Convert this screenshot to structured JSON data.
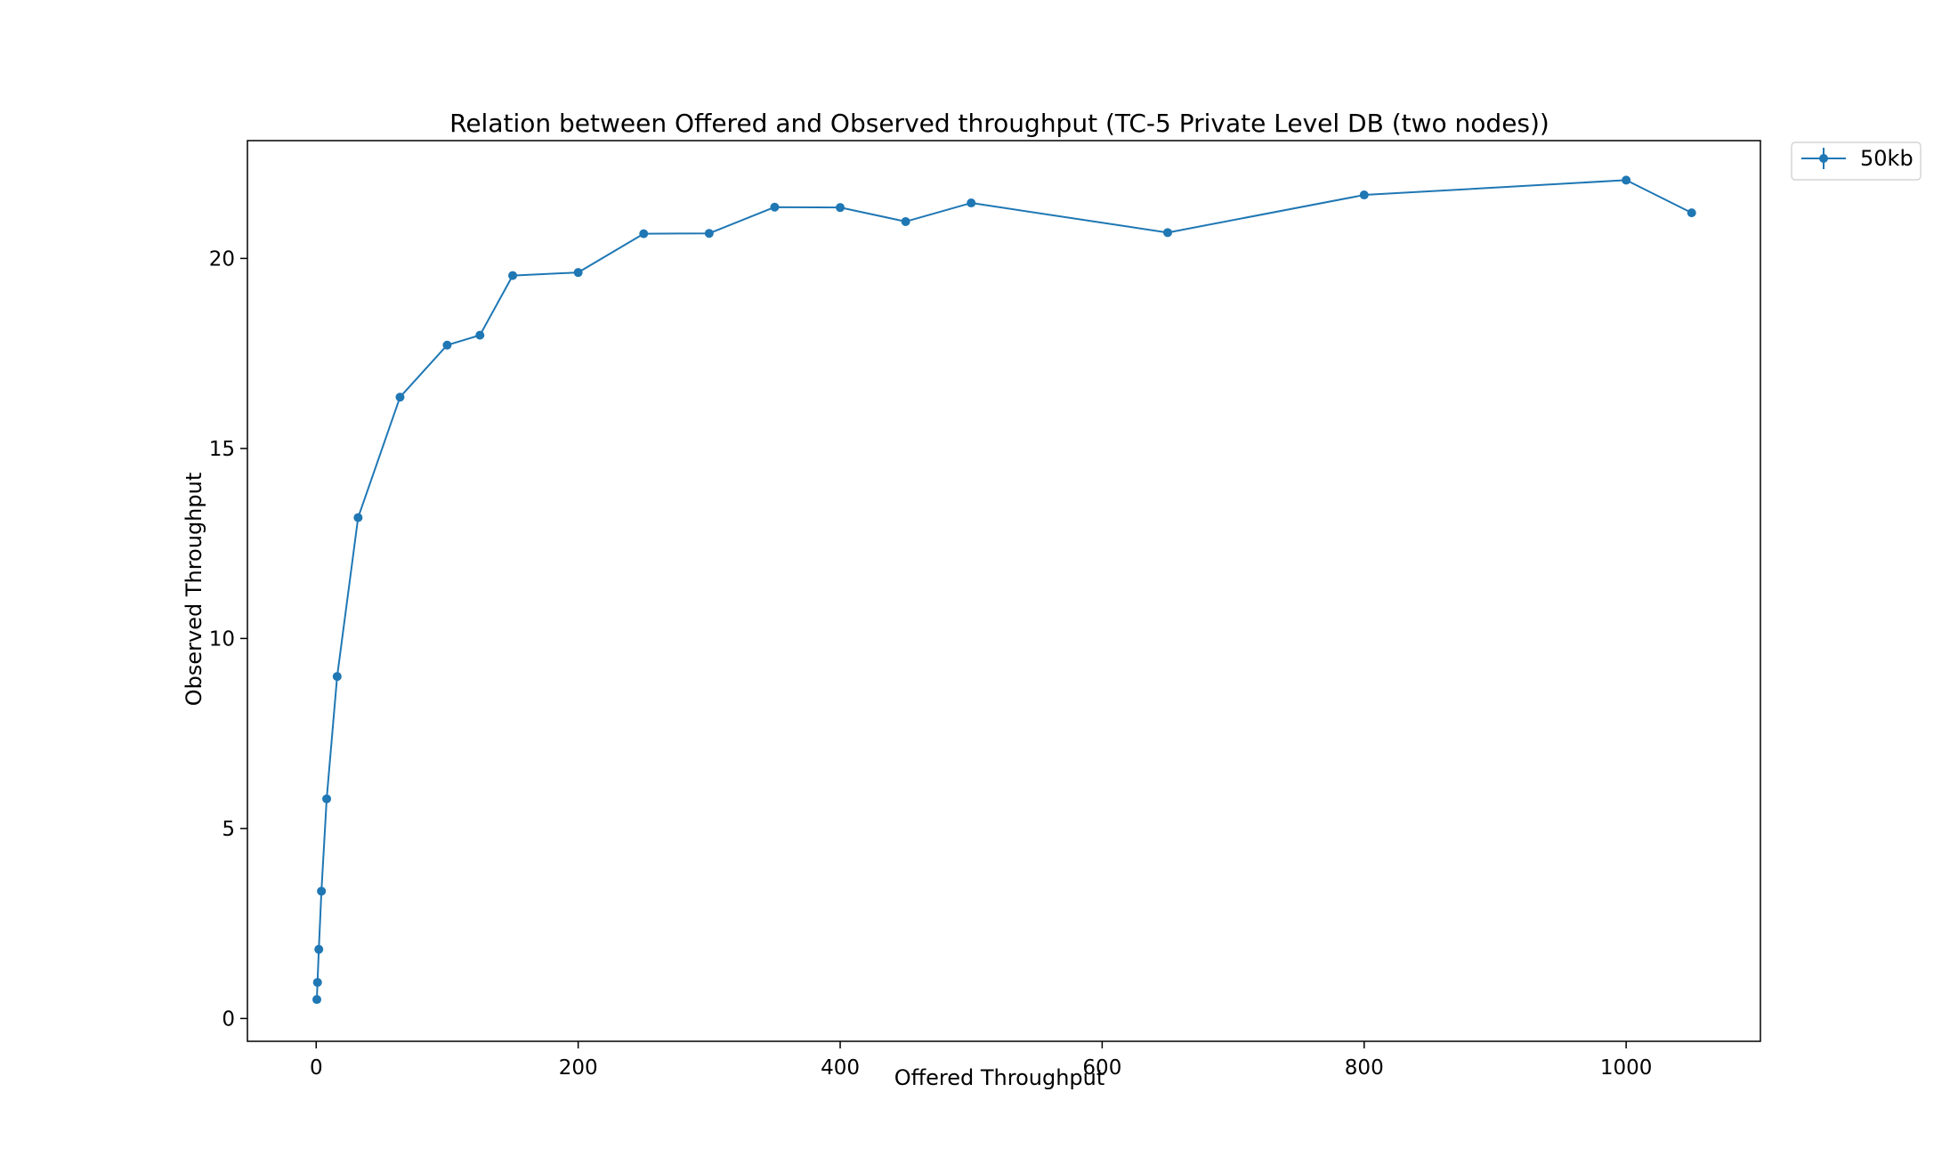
{
  "chart_data": {
    "type": "line",
    "title": "Relation between Offered and Observed throughput (TC-5  Private Level DB (two nodes))",
    "xlabel": "Offered Throughput",
    "ylabel": "Observed Throughput",
    "xlim": [
      -52.5,
      1102.5
    ],
    "ylim": [
      -0.6,
      23.1
    ],
    "xticks": [
      0,
      200,
      400,
      600,
      800,
      1000
    ],
    "yticks": [
      0,
      5,
      10,
      15,
      20
    ],
    "grid": false,
    "legend_position": "outside-top-right",
    "series": [
      {
        "name": "50kb",
        "color": "#1f77b4",
        "marker": "circle",
        "x": [
          0.5,
          1,
          2,
          4,
          8,
          16,
          32,
          64,
          100,
          125,
          150,
          200,
          250,
          300,
          350,
          400,
          450,
          500,
          650,
          800,
          1000,
          1050
        ],
        "y": [
          0.5,
          0.95,
          1.82,
          3.35,
          5.78,
          9.0,
          13.18,
          16.35,
          17.72,
          17.98,
          19.55,
          19.63,
          20.65,
          20.66,
          21.35,
          21.34,
          20.97,
          21.46,
          20.68,
          21.67,
          22.06,
          21.2
        ]
      }
    ]
  }
}
